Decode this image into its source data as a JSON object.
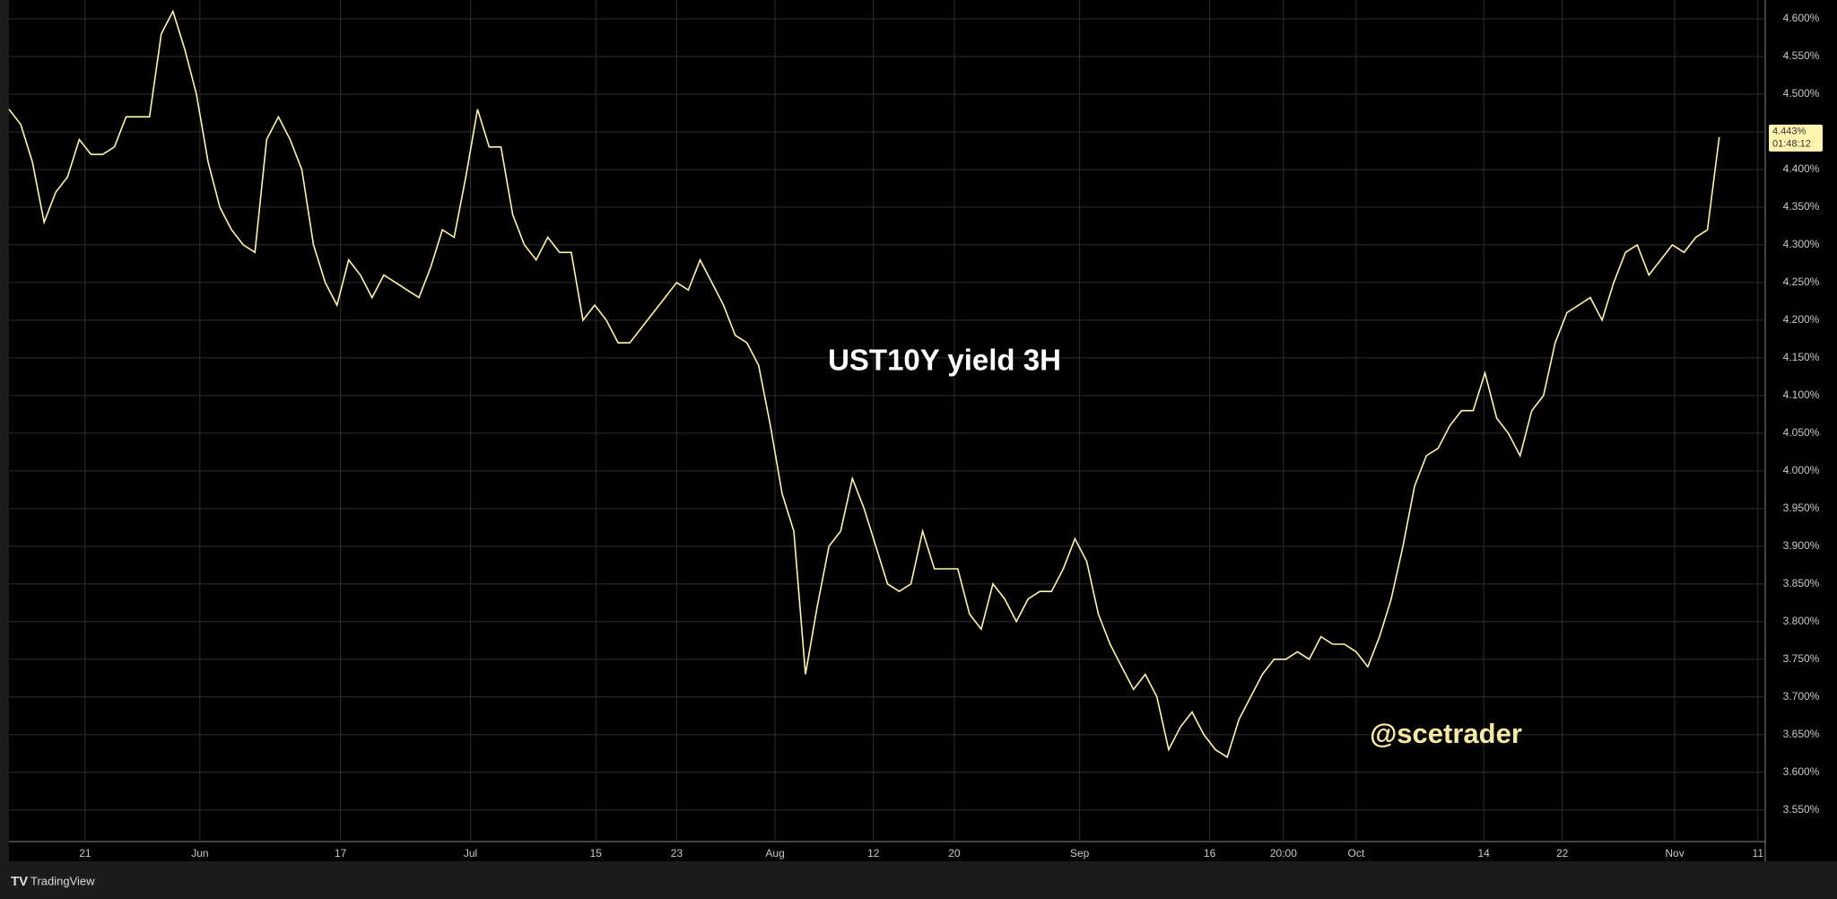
{
  "chart_data": {
    "type": "line",
    "title": "UST10Y yield  3H",
    "watermark": "@scetrader",
    "brand": "TradingView",
    "last_price": {
      "value": 4.443,
      "label": "4.443%"
    },
    "countdown": "01:48:12",
    "grid": true,
    "series": [
      {
        "color": "#fff3b0",
        "values": [
          4.48,
          4.46,
          4.41,
          4.33,
          4.37,
          4.39,
          4.44,
          4.42,
          4.42,
          4.43,
          4.47,
          4.47,
          4.47,
          4.58,
          4.61,
          4.56,
          4.5,
          4.41,
          4.35,
          4.32,
          4.3,
          4.29,
          4.44,
          4.47,
          4.44,
          4.4,
          4.3,
          4.25,
          4.22,
          4.28,
          4.26,
          4.23,
          4.26,
          4.25,
          4.24,
          4.23,
          4.27,
          4.32,
          4.31,
          4.39,
          4.48,
          4.43,
          4.43,
          4.34,
          4.3,
          4.28,
          4.31,
          4.29,
          4.29,
          4.2,
          4.22,
          4.2,
          4.17,
          4.17,
          4.19,
          4.21,
          4.23,
          4.25,
          4.24,
          4.28,
          4.25,
          4.22,
          4.18,
          4.17,
          4.14,
          4.06,
          3.97,
          3.92,
          3.73,
          3.82,
          3.9,
          3.92,
          3.99,
          3.95,
          3.9,
          3.85,
          3.84,
          3.85,
          3.92,
          3.87,
          3.87,
          3.87,
          3.81,
          3.79,
          3.85,
          3.83,
          3.8,
          3.83,
          3.84,
          3.84,
          3.87,
          3.91,
          3.88,
          3.81,
          3.77,
          3.74,
          3.71,
          3.73,
          3.7,
          3.63,
          3.66,
          3.68,
          3.65,
          3.63,
          3.62,
          3.67,
          3.7,
          3.73,
          3.75,
          3.75,
          3.76,
          3.75,
          3.78,
          3.77,
          3.77,
          3.76,
          3.74,
          3.78,
          3.83,
          3.9,
          3.98,
          4.02,
          4.03,
          4.06,
          4.08,
          4.08,
          4.13,
          4.07,
          4.05,
          4.02,
          4.08,
          4.1,
          4.17,
          4.21,
          4.22,
          4.23,
          4.2,
          4.25,
          4.29,
          4.3,
          4.26,
          4.28,
          4.3,
          4.29,
          4.31,
          4.32,
          4.443
        ]
      }
    ],
    "xlim": [
      0,
      149.7
    ],
    "xticks": [
      {
        "value": 6.5,
        "label": "21"
      },
      {
        "value": 16.3,
        "label": "Jun"
      },
      {
        "value": 28.3,
        "label": "17"
      },
      {
        "value": 39.4,
        "label": "Jul"
      },
      {
        "value": 50.1,
        "label": "15"
      },
      {
        "value": 57,
        "label": "23"
      },
      {
        "value": 65.4,
        "label": "Aug"
      },
      {
        "value": 73.8,
        "label": "12"
      },
      {
        "value": 80.7,
        "label": "20"
      },
      {
        "value": 91.4,
        "label": "Sep"
      },
      {
        "value": 102.5,
        "label": "16"
      },
      {
        "value": 108.8,
        "label": "20:00"
      },
      {
        "value": 115,
        "label": "Oct"
      },
      {
        "value": 125.9,
        "label": "14"
      },
      {
        "value": 132.6,
        "label": "22"
      },
      {
        "value": 142.2,
        "label": "Nov"
      },
      {
        "value": 149.3,
        "label": "11"
      }
    ],
    "ylim": [
      3.508,
      4.625
    ],
    "yticks": [
      {
        "value": 3.55,
        "label": "3.550%"
      },
      {
        "value": 3.6,
        "label": "3.600%"
      },
      {
        "value": 3.65,
        "label": "3.650%"
      },
      {
        "value": 3.7,
        "label": "3.700%"
      },
      {
        "value": 3.75,
        "label": "3.750%"
      },
      {
        "value": 3.8,
        "label": "3.800%"
      },
      {
        "value": 3.85,
        "label": "3.850%"
      },
      {
        "value": 3.9,
        "label": "3.900%"
      },
      {
        "value": 3.95,
        "label": "3.950%"
      },
      {
        "value": 4.0,
        "label": "4.000%"
      },
      {
        "value": 4.05,
        "label": "4.050%"
      },
      {
        "value": 4.1,
        "label": "4.100%"
      },
      {
        "value": 4.15,
        "label": "4.150%"
      },
      {
        "value": 4.2,
        "label": "4.200%"
      },
      {
        "value": 4.25,
        "label": "4.250%"
      },
      {
        "value": 4.3,
        "label": "4.300%"
      },
      {
        "value": 4.35,
        "label": "4.350%"
      },
      {
        "value": 4.4,
        "label": "4.400%"
      },
      {
        "value": 4.45,
        "label": "4.450%"
      },
      {
        "value": 4.5,
        "label": "4.500%"
      },
      {
        "value": 4.55,
        "label": "4.550%"
      },
      {
        "value": 4.6,
        "label": "4.600%"
      }
    ]
  }
}
